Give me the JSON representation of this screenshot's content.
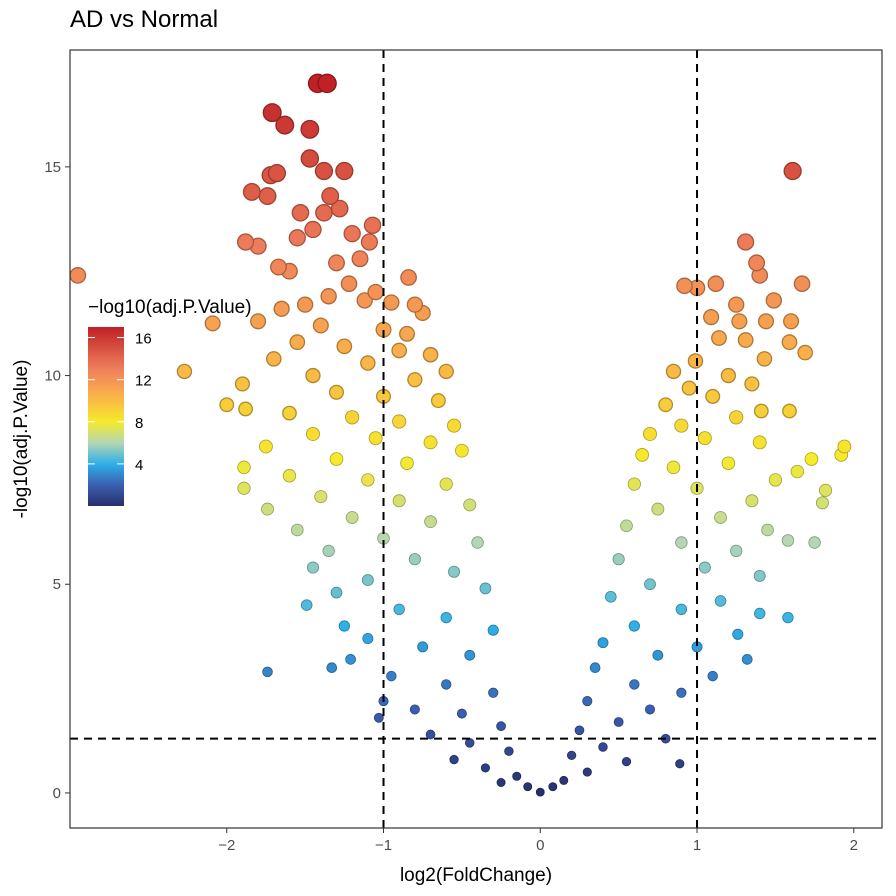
{
  "chart_data": {
    "type": "scatter",
    "title": "AD vs Normal",
    "xlabel": "log2(FoldChange)",
    "ylabel": "-log10(adj.P.Value)",
    "xlim": [
      -3.0,
      2.18
    ],
    "ylim": [
      -0.84,
      17.8
    ],
    "xticks": [
      -2,
      -1,
      0,
      1,
      2
    ],
    "xtick_labels": [
      "−2",
      "−1",
      "0",
      "1",
      "2"
    ],
    "yticks": [
      0,
      5,
      10,
      15
    ],
    "ytick_labels": [
      "0",
      "5",
      "10",
      "15"
    ],
    "grid": false,
    "reference_lines": {
      "vertical": [
        -1,
        1
      ],
      "horizontal": [
        1.3
      ],
      "style": "dashed"
    },
    "color_scale": {
      "title": "−log10(adj.P.Value)",
      "variable": "y",
      "range": [
        0,
        17
      ],
      "ticks": [
        4,
        8,
        12,
        16
      ],
      "tick_labels": [
        "4",
        "8",
        "12",
        "16"
      ],
      "stops": [
        {
          "value": 0,
          "color": "#27306b"
        },
        {
          "value": 2,
          "color": "#3b5fb0"
        },
        {
          "value": 4,
          "color": "#2fb0e8"
        },
        {
          "value": 6,
          "color": "#b4d6b4"
        },
        {
          "value": 8,
          "color": "#f6ea2a"
        },
        {
          "value": 10.5,
          "color": "#f9b14a"
        },
        {
          "value": 13,
          "color": "#ef7f5c"
        },
        {
          "value": 17,
          "color": "#bf2126"
        }
      ]
    },
    "legend_position": "left-inside",
    "points": [
      [
        -1.42,
        17.0
      ],
      [
        -1.36,
        17.0
      ],
      [
        -1.71,
        16.3
      ],
      [
        -1.63,
        16.0
      ],
      [
        -1.47,
        15.9
      ],
      [
        -1.47,
        15.2
      ],
      [
        -1.68,
        14.85
      ],
      [
        -1.72,
        14.8
      ],
      [
        -1.38,
        14.9
      ],
      [
        -1.25,
        14.9
      ],
      [
        -1.84,
        14.4
      ],
      [
        -1.74,
        14.3
      ],
      [
        -1.34,
        14.3
      ],
      [
        -1.53,
        13.9
      ],
      [
        -1.38,
        13.9
      ],
      [
        -1.28,
        14.0
      ],
      [
        -1.88,
        13.2
      ],
      [
        -1.8,
        13.1
      ],
      [
        -1.55,
        13.3
      ],
      [
        -2.95,
        12.4
      ],
      [
        -1.07,
        13.6
      ],
      [
        -1.09,
        13.2
      ],
      [
        -1.67,
        12.6
      ],
      [
        -1.6,
        12.5
      ],
      [
        -0.84,
        12.35
      ],
      [
        -1.2,
        13.4
      ],
      [
        -1.15,
        12.8
      ],
      [
        -1.3,
        12.7
      ],
      [
        -1.45,
        13.5
      ],
      [
        -1.22,
        12.2
      ],
      [
        -1.05,
        12.0
      ],
      [
        -1.12,
        11.8
      ],
      [
        -1.35,
        11.9
      ],
      [
        -1.5,
        11.7
      ],
      [
        -0.95,
        11.75
      ],
      [
        -0.8,
        11.7
      ],
      [
        -0.75,
        11.5
      ],
      [
        -1.65,
        11.6
      ],
      [
        -2.09,
        11.25
      ],
      [
        -1.8,
        11.3
      ],
      [
        -1.4,
        11.2
      ],
      [
        -1.0,
        11.1
      ],
      [
        -0.85,
        11.0
      ],
      [
        -1.55,
        10.8
      ],
      [
        -1.25,
        10.7
      ],
      [
        -0.9,
        10.6
      ],
      [
        -0.7,
        10.5
      ],
      [
        -1.7,
        10.4
      ],
      [
        -1.1,
        10.3
      ],
      [
        -0.6,
        10.1
      ],
      [
        -2.27,
        10.1
      ],
      [
        -1.45,
        10.0
      ],
      [
        -0.8,
        9.9
      ],
      [
        -1.9,
        9.8
      ],
      [
        -1.3,
        9.6
      ],
      [
        -1.0,
        9.5
      ],
      [
        -0.65,
        9.4
      ],
      [
        -2.0,
        9.3
      ],
      [
        -1.88,
        9.2
      ],
      [
        -1.6,
        9.1
      ],
      [
        -1.2,
        9.0
      ],
      [
        -0.9,
        8.9
      ],
      [
        -0.55,
        8.8
      ],
      [
        -1.45,
        8.6
      ],
      [
        -1.05,
        8.5
      ],
      [
        -0.7,
        8.4
      ],
      [
        -1.75,
        8.3
      ],
      [
        -0.5,
        8.2
      ],
      [
        -1.3,
        8.0
      ],
      [
        -0.85,
        7.9
      ],
      [
        -1.89,
        7.8
      ],
      [
        -1.6,
        7.6
      ],
      [
        -1.1,
        7.5
      ],
      [
        -0.6,
        7.4
      ],
      [
        -1.89,
        7.3
      ],
      [
        -1.4,
        7.1
      ],
      [
        -0.9,
        7.0
      ],
      [
        -0.45,
        6.9
      ],
      [
        -1.74,
        6.8
      ],
      [
        -1.2,
        6.6
      ],
      [
        -0.7,
        6.5
      ],
      [
        -1.55,
        6.3
      ],
      [
        -1.0,
        6.1
      ],
      [
        -0.4,
        6.0
      ],
      [
        -1.35,
        5.8
      ],
      [
        -0.8,
        5.6
      ],
      [
        -1.45,
        5.4
      ],
      [
        -0.55,
        5.3
      ],
      [
        -1.1,
        5.1
      ],
      [
        -0.35,
        4.9
      ],
      [
        -1.3,
        4.8
      ],
      [
        -1.49,
        4.5
      ],
      [
        -0.9,
        4.4
      ],
      [
        -0.6,
        4.2
      ],
      [
        -1.25,
        4.0
      ],
      [
        -0.3,
        3.9
      ],
      [
        -1.1,
        3.7
      ],
      [
        -0.75,
        3.5
      ],
      [
        -0.45,
        3.3
      ],
      [
        -1.21,
        3.2
      ],
      [
        -1.33,
        3.0
      ],
      [
        -1.74,
        2.9
      ],
      [
        -0.95,
        2.8
      ],
      [
        -0.6,
        2.6
      ],
      [
        -0.3,
        2.4
      ],
      [
        -1.0,
        2.2
      ],
      [
        -0.8,
        2.0
      ],
      [
        -0.5,
        1.9
      ],
      [
        -1.03,
        1.8
      ],
      [
        -0.25,
        1.6
      ],
      [
        -0.7,
        1.4
      ],
      [
        -0.45,
        1.2
      ],
      [
        -0.2,
        1.0
      ],
      [
        -0.55,
        0.8
      ],
      [
        -0.35,
        0.6
      ],
      [
        -0.15,
        0.4
      ],
      [
        -0.25,
        0.25
      ],
      [
        -0.08,
        0.15
      ],
      [
        0.0,
        0.02
      ],
      [
        1.61,
        14.9
      ],
      [
        1.31,
        13.2
      ],
      [
        1.38,
        12.7
      ],
      [
        1.4,
        12.4
      ],
      [
        0.92,
        12.15
      ],
      [
        1.0,
        12.1
      ],
      [
        1.12,
        12.2
      ],
      [
        1.67,
        12.2
      ],
      [
        1.25,
        11.7
      ],
      [
        1.49,
        11.8
      ],
      [
        1.09,
        11.4
      ],
      [
        1.27,
        11.3
      ],
      [
        1.44,
        11.3
      ],
      [
        1.6,
        11.3
      ],
      [
        1.14,
        10.9
      ],
      [
        1.31,
        10.85
      ],
      [
        1.59,
        10.8
      ],
      [
        1.69,
        10.55
      ],
      [
        0.99,
        10.35
      ],
      [
        1.43,
        10.4
      ],
      [
        0.85,
        10.1
      ],
      [
        1.2,
        10.0
      ],
      [
        1.35,
        9.8
      ],
      [
        0.95,
        9.7
      ],
      [
        1.1,
        9.5
      ],
      [
        0.8,
        9.3
      ],
      [
        1.41,
        9.15
      ],
      [
        1.59,
        9.15
      ],
      [
        1.25,
        9.0
      ],
      [
        0.9,
        8.8
      ],
      [
        0.7,
        8.6
      ],
      [
        1.05,
        8.5
      ],
      [
        1.4,
        8.4
      ],
      [
        1.94,
        8.3
      ],
      [
        1.92,
        8.1
      ],
      [
        0.65,
        8.1
      ],
      [
        1.73,
        8.0
      ],
      [
        1.2,
        7.9
      ],
      [
        0.85,
        7.8
      ],
      [
        1.64,
        7.7
      ],
      [
        1.5,
        7.5
      ],
      [
        0.6,
        7.4
      ],
      [
        1.0,
        7.3
      ],
      [
        1.82,
        7.25
      ],
      [
        1.35,
        7.0
      ],
      [
        1.8,
        6.95
      ],
      [
        0.75,
        6.8
      ],
      [
        1.15,
        6.6
      ],
      [
        0.55,
        6.4
      ],
      [
        1.45,
        6.3
      ],
      [
        1.58,
        6.05
      ],
      [
        1.75,
        6.0
      ],
      [
        0.9,
        6.0
      ],
      [
        1.25,
        5.8
      ],
      [
        0.5,
        5.6
      ],
      [
        1.05,
        5.4
      ],
      [
        1.4,
        5.2
      ],
      [
        0.7,
        5.0
      ],
      [
        0.45,
        4.7
      ],
      [
        1.15,
        4.6
      ],
      [
        0.9,
        4.4
      ],
      [
        1.4,
        4.3
      ],
      [
        1.58,
        4.2
      ],
      [
        0.6,
        4.0
      ],
      [
        1.26,
        3.8
      ],
      [
        0.4,
        3.6
      ],
      [
        1.0,
        3.5
      ],
      [
        0.75,
        3.3
      ],
      [
        1.32,
        3.2
      ],
      [
        0.35,
        3.0
      ],
      [
        1.1,
        2.8
      ],
      [
        0.6,
        2.6
      ],
      [
        0.9,
        2.4
      ],
      [
        0.3,
        2.2
      ],
      [
        0.7,
        2.0
      ],
      [
        0.5,
        1.7
      ],
      [
        0.25,
        1.5
      ],
      [
        0.8,
        1.3
      ],
      [
        0.4,
        1.1
      ],
      [
        0.2,
        0.9
      ],
      [
        0.55,
        0.75
      ],
      [
        0.89,
        0.7
      ],
      [
        0.3,
        0.5
      ],
      [
        0.15,
        0.3
      ],
      [
        0.08,
        0.15
      ]
    ]
  }
}
